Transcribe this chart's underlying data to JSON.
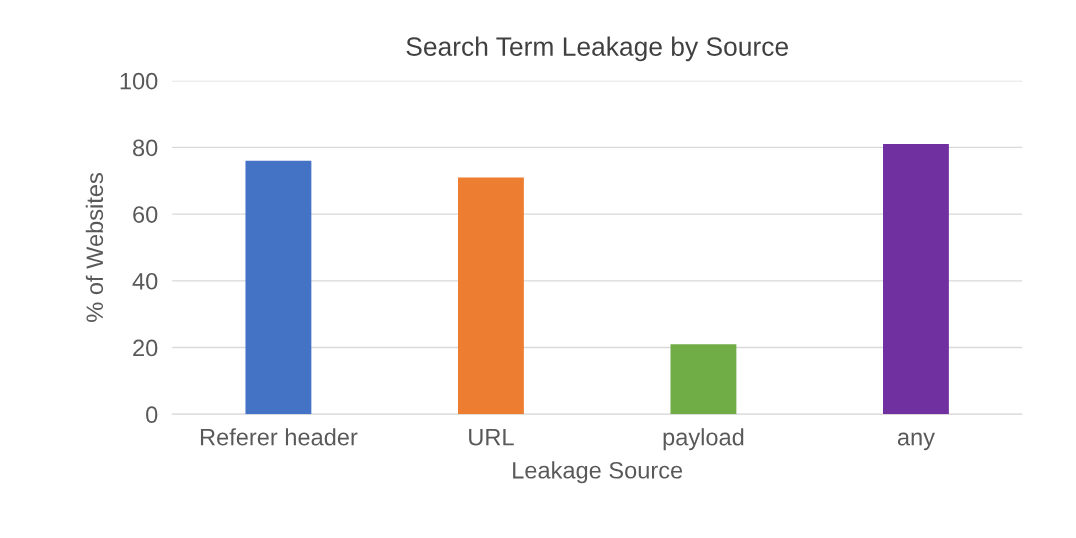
{
  "chart_data": {
    "type": "bar",
    "title": "Search Term Leakage by Source",
    "xlabel": "Leakage Source",
    "ylabel": "% of Websites",
    "categories": [
      "Referer header",
      "URL",
      "payload",
      "any"
    ],
    "values": [
      76,
      71,
      21,
      81
    ],
    "colors": [
      "#4472c4",
      "#ed7d31",
      "#70ad47",
      "#7030a0"
    ],
    "ylim": [
      0,
      100
    ],
    "yticks": [
      0,
      20,
      40,
      60,
      80,
      100
    ],
    "grid": "y"
  }
}
